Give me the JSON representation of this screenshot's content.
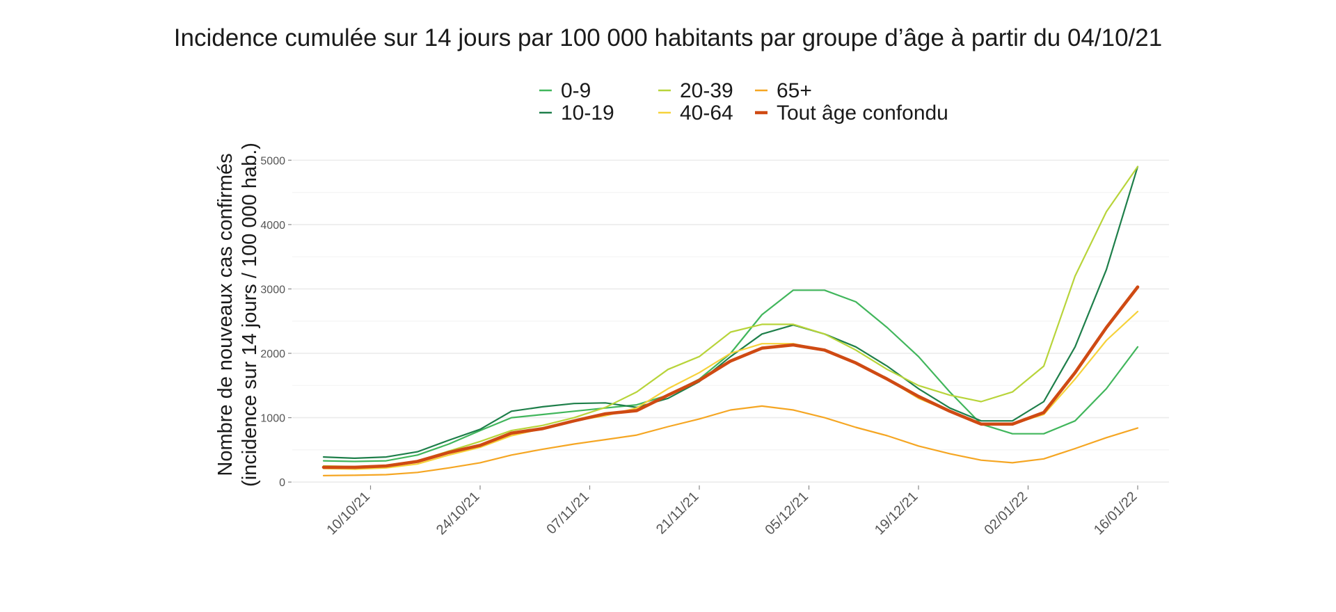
{
  "chart_data": {
    "type": "line",
    "title": "Incidence cumulée sur 14 jours par 100 000 habitants par groupe d’âge à partir du 04/10/21",
    "ylabel_line1": "Nombre de nouveaux cas confirmés",
    "ylabel_line2": "(incidence sur 14 jours / 100 000 hab.)",
    "xlabel": "",
    "x_start_date": "04/10/21",
    "x_range_days": [
      -4,
      108
    ],
    "ylim": [
      -20,
      5220
    ],
    "y_ticks": [
      0,
      1000,
      2000,
      3000,
      4000,
      5000
    ],
    "x_ticks": [
      {
        "day": 6,
        "label": "10/10/21"
      },
      {
        "day": 20,
        "label": "24/10/21"
      },
      {
        "day": 34,
        "label": "07/11/21"
      },
      {
        "day": 48,
        "label": "21/11/21"
      },
      {
        "day": 62,
        "label": "05/12/21"
      },
      {
        "day": 76,
        "label": "19/12/21"
      },
      {
        "day": 90,
        "label": "02/01/22"
      },
      {
        "day": 104,
        "label": "16/01/22"
      }
    ],
    "legend_position": "top",
    "grid": true,
    "series": [
      {
        "name": "0-9",
        "color": "#41b65c",
        "width": 2.2,
        "x": [
          0,
          4,
          8,
          12,
          16,
          20,
          24,
          28,
          32,
          36,
          40,
          44,
          48,
          52,
          56,
          60,
          64,
          68,
          72,
          76,
          80,
          84,
          88,
          92,
          96,
          100,
          104
        ],
        "y": [
          330,
          320,
          330,
          420,
          590,
          800,
          1000,
          1050,
          1100,
          1150,
          1200,
          1350,
          1600,
          2000,
          2600,
          2980,
          2980,
          2800,
          2400,
          1950,
          1400,
          900,
          750,
          750,
          950,
          1450,
          2100
        ]
      },
      {
        "name": "10-19",
        "color": "#1e7f4a",
        "width": 2.2,
        "x": [
          0,
          4,
          8,
          12,
          16,
          20,
          24,
          28,
          32,
          36,
          40,
          44,
          48,
          52,
          56,
          60,
          64,
          68,
          72,
          76,
          80,
          84,
          88,
          92,
          96,
          100,
          104
        ],
        "y": [
          390,
          370,
          390,
          470,
          650,
          820,
          1100,
          1170,
          1220,
          1230,
          1160,
          1300,
          1560,
          1950,
          2300,
          2440,
          2300,
          2100,
          1800,
          1450,
          1150,
          950,
          950,
          1250,
          2100,
          3300,
          4900
        ]
      },
      {
        "name": "20-39",
        "color": "#b8d43a",
        "width": 2.2,
        "x": [
          0,
          4,
          8,
          12,
          16,
          20,
          24,
          28,
          32,
          36,
          40,
          44,
          48,
          52,
          56,
          60,
          64,
          68,
          72,
          76,
          80,
          84,
          88,
          92,
          96,
          100,
          104
        ],
        "y": [
          250,
          240,
          260,
          330,
          480,
          630,
          800,
          880,
          1000,
          1160,
          1400,
          1750,
          1950,
          2330,
          2450,
          2450,
          2300,
          2050,
          1750,
          1500,
          1350,
          1250,
          1400,
          1800,
          3200,
          4200,
          4900
        ]
      },
      {
        "name": "40-64",
        "color": "#f6d23a",
        "width": 2.2,
        "x": [
          0,
          4,
          8,
          12,
          16,
          20,
          24,
          28,
          32,
          36,
          40,
          44,
          48,
          52,
          56,
          60,
          64,
          68,
          72,
          76,
          80,
          84,
          88,
          92,
          96,
          100,
          104
        ],
        "y": [
          210,
          200,
          220,
          280,
          420,
          540,
          720,
          830,
          950,
          1030,
          1150,
          1450,
          1700,
          2000,
          2150,
          2150,
          2050,
          1850,
          1600,
          1300,
          1100,
          900,
          900,
          1050,
          1600,
          2200,
          2650
        ]
      },
      {
        "name": "65+",
        "color": "#f5a623",
        "width": 2.2,
        "x": [
          0,
          4,
          8,
          12,
          16,
          20,
          24,
          28,
          32,
          36,
          40,
          44,
          48,
          52,
          56,
          60,
          64,
          68,
          72,
          76,
          80,
          84,
          88,
          92,
          96,
          100,
          104
        ],
        "y": [
          100,
          105,
          115,
          150,
          220,
          300,
          420,
          510,
          590,
          660,
          730,
          860,
          980,
          1120,
          1180,
          1120,
          1000,
          850,
          720,
          560,
          440,
          340,
          300,
          360,
          520,
          690,
          840
        ]
      },
      {
        "name": "Tout âge confondu",
        "color": "#cf4a13",
        "width": 4.6,
        "x": [
          0,
          4,
          8,
          12,
          16,
          20,
          24,
          28,
          32,
          36,
          40,
          44,
          48,
          52,
          56,
          60,
          64,
          68,
          72,
          76,
          80,
          84,
          88,
          92,
          96,
          100,
          104
        ],
        "y": [
          230,
          230,
          250,
          320,
          460,
          570,
          760,
          830,
          950,
          1060,
          1110,
          1350,
          1580,
          1880,
          2080,
          2130,
          2050,
          1850,
          1600,
          1330,
          1100,
          900,
          900,
          1080,
          1700,
          2400,
          3030
        ]
      }
    ]
  }
}
